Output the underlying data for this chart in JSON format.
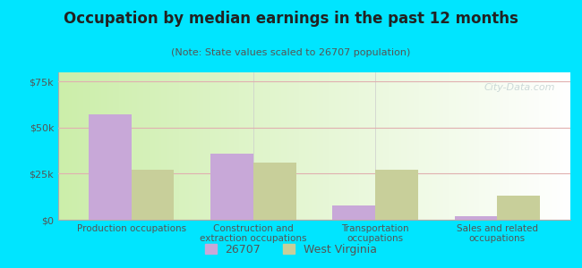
{
  "title": "Occupation by median earnings in the past 12 months",
  "subtitle": "(Note: State values scaled to 26707 population)",
  "categories": [
    "Production occupations",
    "Construction and\nextraction occupations",
    "Transportation\noccupations",
    "Sales and related\noccupations"
  ],
  "values_26707": [
    57000,
    36000,
    8000,
    2000
  ],
  "values_wv": [
    27000,
    31000,
    27000,
    13000
  ],
  "color_26707": "#c8a8d8",
  "color_wv": "#c8cf9a",
  "ylim": [
    0,
    80000
  ],
  "yticks": [
    0,
    25000,
    50000,
    75000
  ],
  "ytick_labels": [
    "$0",
    "$25k",
    "$50k",
    "$75k"
  ],
  "legend_26707": "26707",
  "legend_wv": "West Virginia",
  "bg_outer": "#00e5ff",
  "bar_width": 0.35,
  "grid_color": "#e0b0b0",
  "tick_color": "#555555",
  "title_color": "#222222",
  "subtitle_color": "#555555"
}
